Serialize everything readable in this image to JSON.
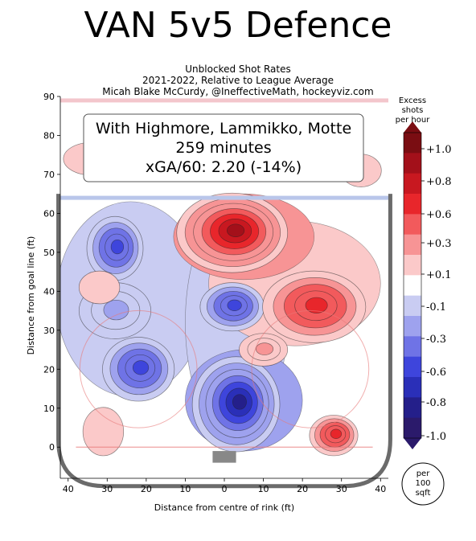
{
  "title": "VAN 5v5 Defence",
  "subtitle_lines": [
    "Unblocked Shot Rates",
    "2021-2022, Relative to League Average",
    "Micah Blake McCurdy, @IneffectiveMath, hockeyviz.com"
  ],
  "info_box": {
    "line1": "With Highmore, Lammikko, Motte",
    "line2": "259 minutes",
    "line3": "xGA/60: 2.20 (-14%)"
  },
  "chart_data": {
    "type": "heatmap",
    "title": "VAN 5v5 Defence",
    "xlabel": "Distance from centre of rink (ft)",
    "ylabel": "Distance from goal line (ft)",
    "xlim": [
      -42,
      42
    ],
    "ylim": [
      -8,
      90
    ],
    "x_ticks": [
      40,
      30,
      20,
      10,
      0,
      10,
      20,
      30,
      40
    ],
    "x_tick_positions": [
      -40,
      -30,
      -20,
      -10,
      0,
      10,
      20,
      30,
      40
    ],
    "y_ticks": [
      0,
      10,
      20,
      30,
      40,
      50,
      60,
      70,
      80,
      90
    ],
    "colorbar": {
      "title_lines": [
        "Excess",
        "shots",
        "per hour"
      ],
      "range": [
        -1.0,
        1.0
      ],
      "ticks": [
        "+1.0",
        "+0.8",
        "+0.6",
        "+0.3",
        "+0.1",
        "-0.1",
        "-0.3",
        "-0.6",
        "-0.8",
        "-1.0"
      ],
      "colors": [
        "#7a0d12",
        "#a3101a",
        "#c81820",
        "#e8262b",
        "#f25a5c",
        "#f79495",
        "#fbc9c9",
        "#ffffff",
        "#c9ccf2",
        "#9ea2ee",
        "#6f73e6",
        "#3e45dc",
        "#2a2fb8",
        "#241f8a",
        "#2b1a6b"
      ]
    },
    "unit_badge": [
      "per",
      "100",
      "sqft"
    ],
    "regions": [
      {
        "name": "slot-low",
        "x": 3,
        "y": 11,
        "value": -0.8
      },
      {
        "name": "left-point",
        "x": -28,
        "y": 51,
        "value": -0.6
      },
      {
        "name": "high-slot-centre",
        "x": 2,
        "y": 36,
        "value": -0.6
      },
      {
        "name": "left-faceoff",
        "x": -22,
        "y": 20,
        "value": -0.6
      },
      {
        "name": "left-boards-mid",
        "x": -28,
        "y": 35,
        "value": -0.3
      },
      {
        "name": "right-point",
        "x": 2,
        "y": 55,
        "value": 0.8
      },
      {
        "name": "right-boards-high",
        "x": 23,
        "y": 36,
        "value": 0.6
      },
      {
        "name": "right-corner",
        "x": 28,
        "y": 3,
        "value": 0.6
      },
      {
        "name": "left-corner",
        "x": -31,
        "y": 4,
        "value": 0.1
      },
      {
        "name": "right-dot",
        "x": 10,
        "y": 25,
        "value": 0.3
      },
      {
        "name": "left-side",
        "x": -32,
        "y": 41,
        "value": 0.1
      },
      {
        "name": "left-neutral",
        "x": -34,
        "y": 74,
        "value": 0.1
      },
      {
        "name": "right-neutral",
        "x": 35,
        "y": 71,
        "value": 0.1
      }
    ]
  }
}
